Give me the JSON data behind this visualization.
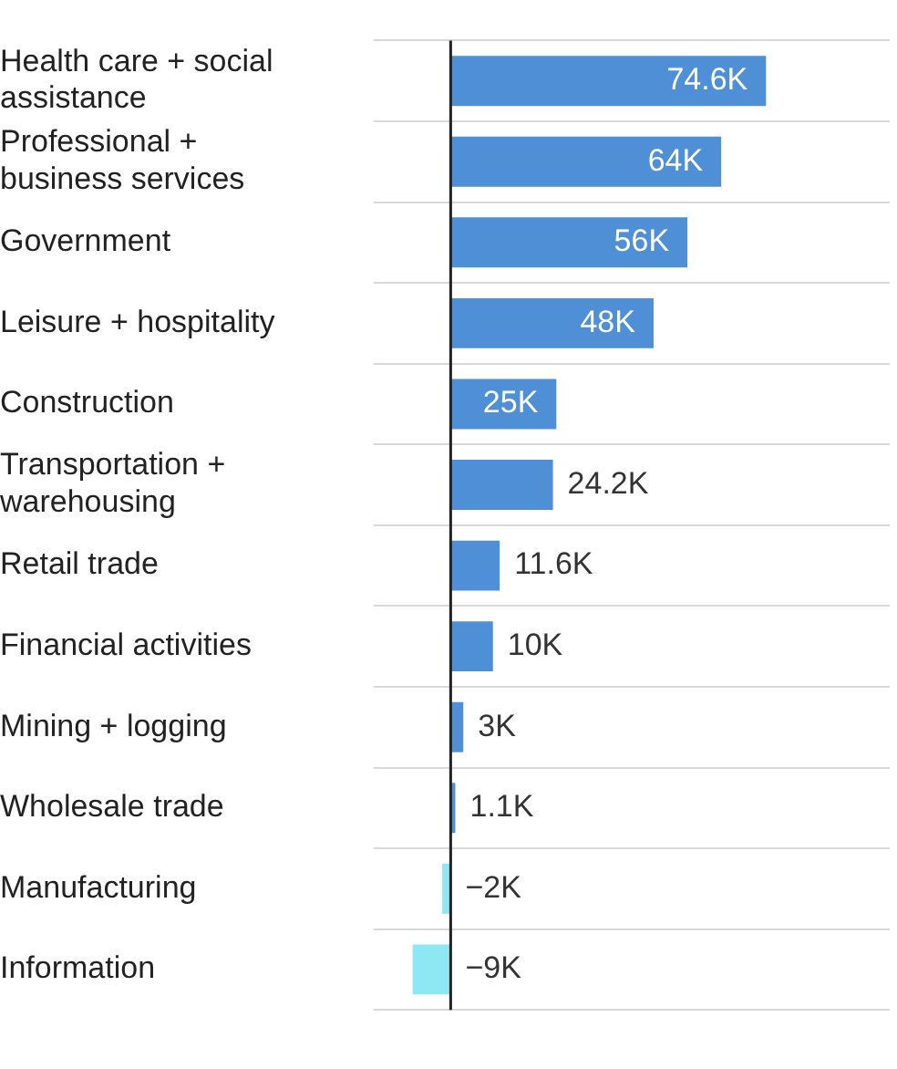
{
  "chart_data": {
    "type": "bar",
    "orientation": "horizontal",
    "grid": "y",
    "categories": [
      "Health care + social assistance",
      "Professional + business services",
      "Government",
      "Leisure + hospitality",
      "Construction",
      "Transportation + warehousing",
      "Retail trade",
      "Financial activities",
      "Mining + logging",
      "Wholesale trade",
      "Manufacturing",
      "Information"
    ],
    "values": [
      74.6,
      64,
      56,
      48,
      25,
      24.2,
      11.6,
      10,
      3,
      1.1,
      -2,
      -9
    ],
    "value_labels": [
      "74.6K",
      "64K",
      "56K",
      "48K",
      "25K",
      "24.2K",
      "11.6K",
      "10K",
      "3K",
      "1.1K",
      "−2K",
      "−9K"
    ],
    "colors": [
      "#4f8fd6",
      "#4f8fd6",
      "#4f8fd6",
      "#4f8fd6",
      "#4f8fd6",
      "#4f8fd6",
      "#4f8fd6",
      "#4f8fd6",
      "#4f8fd6",
      "#4f8fd6",
      "#8ee8f4",
      "#8ee8f4"
    ]
  }
}
